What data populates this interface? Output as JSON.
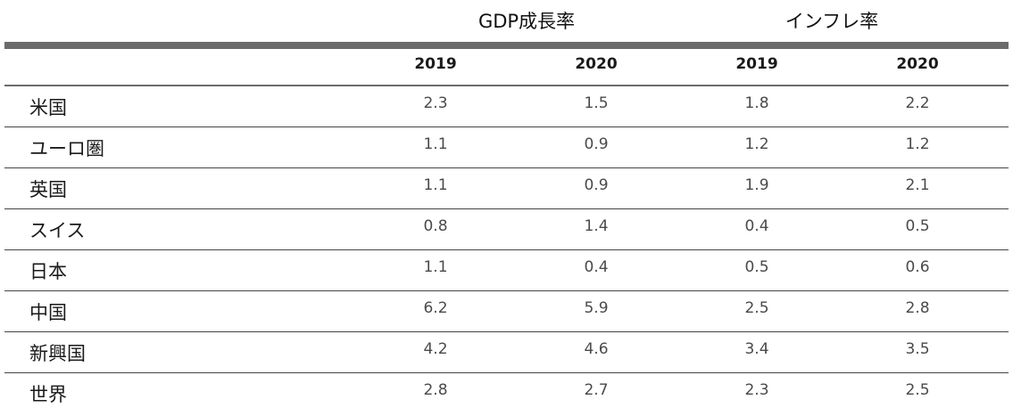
{
  "chart_data": {
    "type": "table",
    "groups": [
      {
        "label": "GDP成長率",
        "years": [
          "2019",
          "2020"
        ]
      },
      {
        "label": "インフレ率",
        "years": [
          "2019",
          "2020"
        ]
      }
    ],
    "rows": [
      {
        "label": "米国",
        "values": [
          "2.3",
          "1.5",
          "1.8",
          "2.2"
        ]
      },
      {
        "label": "ユーロ圏",
        "values": [
          "1.1",
          "0.9",
          "1.2",
          "1.2"
        ]
      },
      {
        "label": "英国",
        "values": [
          "1.1",
          "0.9",
          "1.9",
          "2.1"
        ]
      },
      {
        "label": "スイス",
        "values": [
          "0.8",
          "1.4",
          "0.4",
          "0.5"
        ]
      },
      {
        "label": "日本",
        "values": [
          "1.1",
          "0.4",
          "0.5",
          "0.6"
        ]
      },
      {
        "label": "中国",
        "values": [
          "6.2",
          "5.9",
          "2.5",
          "2.8"
        ]
      },
      {
        "label": "新興国",
        "values": [
          "4.2",
          "4.6",
          "3.4",
          "3.5"
        ]
      },
      {
        "label": "世界",
        "values": [
          "2.8",
          "2.7",
          "2.3",
          "2.5"
        ]
      }
    ]
  },
  "colors": {
    "rule": "#6b6b6b",
    "row_divider": "#444444",
    "header_text": "#111111",
    "value_text": "#4a4a4a"
  }
}
